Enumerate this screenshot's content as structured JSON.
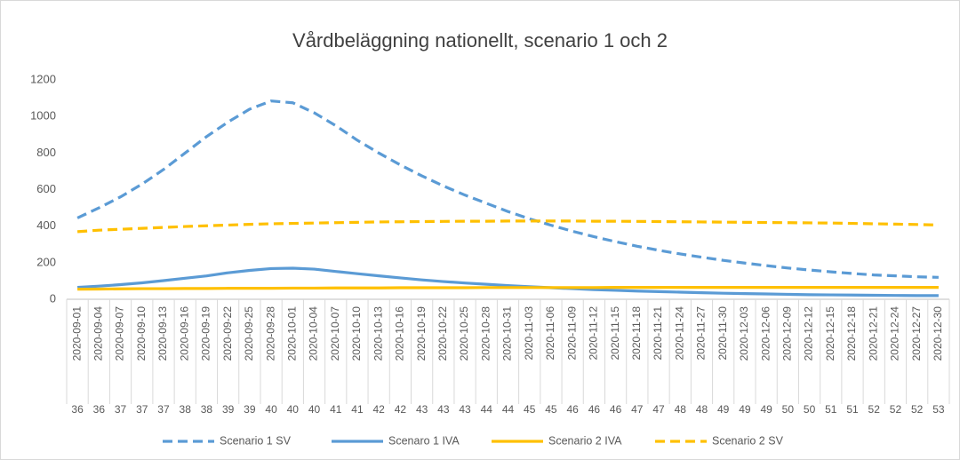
{
  "chart_data": {
    "type": "line",
    "title": "Vårdbeläggning nationellt, scenario 1 och 2",
    "categories": [
      "2020-09-01",
      "2020-09-04",
      "2020-09-07",
      "2020-09-10",
      "2020-09-13",
      "2020-09-16",
      "2020-09-19",
      "2020-09-22",
      "2020-09-25",
      "2020-09-28",
      "2020-10-01",
      "2020-10-04",
      "2020-10-07",
      "2020-10-10",
      "2020-10-13",
      "2020-10-16",
      "2020-10-19",
      "2020-10-22",
      "2020-10-25",
      "2020-10-28",
      "2020-10-31",
      "2020-11-03",
      "2020-11-06",
      "2020-11-09",
      "2020-11-12",
      "2020-11-15",
      "2020-11-18",
      "2020-11-21",
      "2020-11-24",
      "2020-11-27",
      "2020-11-30",
      "2020-12-03",
      "2020-12-06",
      "2020-12-09",
      "2020-12-12",
      "2020-12-15",
      "2020-12-18",
      "2020-12-21",
      "2020-12-24",
      "2020-12-27",
      "2020-12-30"
    ],
    "week_labels": [
      36,
      36,
      37,
      37,
      37,
      38,
      38,
      39,
      39,
      40,
      40,
      40,
      41,
      41,
      42,
      42,
      43,
      43,
      43,
      44,
      44,
      45,
      45,
      46,
      46,
      46,
      47,
      47,
      48,
      48,
      49,
      49,
      49,
      50,
      50,
      51,
      51,
      52,
      52,
      52,
      53
    ],
    "series": [
      {
        "name": "Scenario 1 SV",
        "color": "#5b9bd5",
        "dashed": true,
        "values": [
          445,
          500,
          560,
          630,
          710,
          800,
          890,
          970,
          1040,
          1085,
          1075,
          1020,
          950,
          870,
          800,
          735,
          675,
          620,
          570,
          525,
          480,
          440,
          405,
          372,
          342,
          315,
          290,
          268,
          248,
          230,
          213,
          198,
          184,
          171,
          160,
          150,
          141,
          133,
          128,
          123,
          120
        ]
      },
      {
        "name": "Scenaro 1 IVA",
        "color": "#5b9bd5",
        "dashed": false,
        "values": [
          65,
          72,
          80,
          90,
          102,
          115,
          128,
          145,
          158,
          168,
          170,
          165,
          152,
          140,
          128,
          117,
          106,
          97,
          89,
          82,
          75,
          69,
          63,
          58,
          53,
          49,
          45,
          42,
          39,
          36,
          33,
          31,
          29,
          27,
          25,
          24,
          23,
          22,
          21,
          20,
          20
        ]
      },
      {
        "name": "Scenario 2 IVA",
        "color": "#ffc000",
        "dashed": false,
        "values": [
          55,
          56,
          57,
          58,
          58,
          59,
          59,
          60,
          60,
          60,
          61,
          61,
          62,
          62,
          62,
          63,
          63,
          63,
          63,
          64,
          64,
          64,
          64,
          64,
          64,
          65,
          65,
          65,
          65,
          65,
          65,
          65,
          65,
          65,
          65,
          65,
          65,
          65,
          65,
          65,
          65
        ]
      },
      {
        "name": "Scenario 2 SV",
        "color": "#ffc000",
        "dashed": true,
        "values": [
          370,
          378,
          383,
          388,
          393,
          398,
          402,
          406,
          410,
          413,
          415,
          417,
          419,
          421,
          423,
          424,
          425,
          426,
          427,
          427,
          428,
          428,
          428,
          428,
          427,
          427,
          426,
          425,
          424,
          423,
          422,
          421,
          420,
          419,
          418,
          417,
          415,
          413,
          411,
          409,
          406
        ]
      }
    ],
    "ylim": [
      0,
      1200
    ],
    "yticks": [
      0,
      200,
      400,
      600,
      800,
      1000,
      1200
    ],
    "grid": false,
    "legend": "bottom"
  }
}
